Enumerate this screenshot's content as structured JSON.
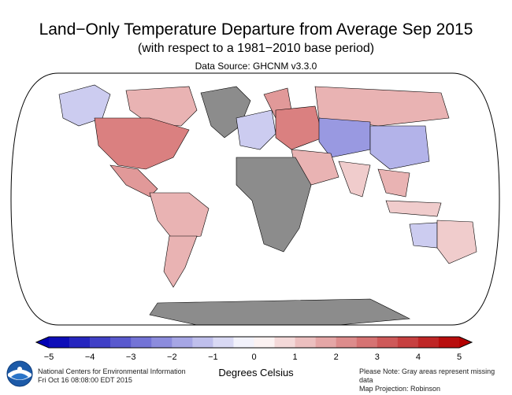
{
  "header": {
    "title": "Land−Only Temperature Departure from Average Sep 2015",
    "subtitle": "(with respect to a 1981−2010 base period)",
    "source": "Data Source: GHCNM v3.3.0"
  },
  "colors": {
    "ocean": "#ffffff",
    "missing_land": "#8c8c8c",
    "outline": "#000000",
    "cold_extreme": "#0000b4",
    "warm_extreme": "#b40000"
  },
  "legend": {
    "tick_labels": [
      "−5",
      "−4",
      "−3",
      "−2",
      "−1",
      "0",
      "1",
      "2",
      "3",
      "4",
      "5"
    ],
    "units": "Degrees Celsius",
    "min": -5,
    "max": 5
  },
  "footer": {
    "logo": "noaa-logo",
    "org_line1": "National Centers for Environmental Information",
    "org_line2": "Fri Oct 16 08:08:00 EDT 2015",
    "note_line1": "Please Note: Gray areas represent missing data",
    "note_line2": "Map Projection: Robinson"
  },
  "map": {
    "projection": "Robinson",
    "regions": [
      {
        "name": "North America",
        "anomaly": 2.5
      },
      {
        "name": "Eastern Canada",
        "anomaly": 1.5
      },
      {
        "name": "Alaska",
        "anomaly": -1
      },
      {
        "name": "Greenland",
        "anomaly": null
      },
      {
        "name": "Central America",
        "anomaly": 2
      },
      {
        "name": "South America (north)",
        "anomaly": 1.5
      },
      {
        "name": "South America (south)",
        "anomaly": 1.5
      },
      {
        "name": "Europe (west)",
        "anomaly": -1
      },
      {
        "name": "Eastern Europe",
        "anomaly": 2.5
      },
      {
        "name": "Scandinavia",
        "anomaly": 2
      },
      {
        "name": "Siberia",
        "anomaly": 1.5
      },
      {
        "name": "Central Asia",
        "anomaly": -2
      },
      {
        "name": "China",
        "anomaly": -1.5
      },
      {
        "name": "Middle East",
        "anomaly": 1.5
      },
      {
        "name": "India",
        "anomaly": 1
      },
      {
        "name": "Africa",
        "anomaly": null
      },
      {
        "name": "Southeast Asia",
        "anomaly": 1.5
      },
      {
        "name": "Indonesia",
        "anomaly": 1
      },
      {
        "name": "Australia",
        "anomaly": 1
      },
      {
        "name": "Western Australia",
        "anomaly": -1
      },
      {
        "name": "Antarctica",
        "anomaly": null
      }
    ]
  }
}
